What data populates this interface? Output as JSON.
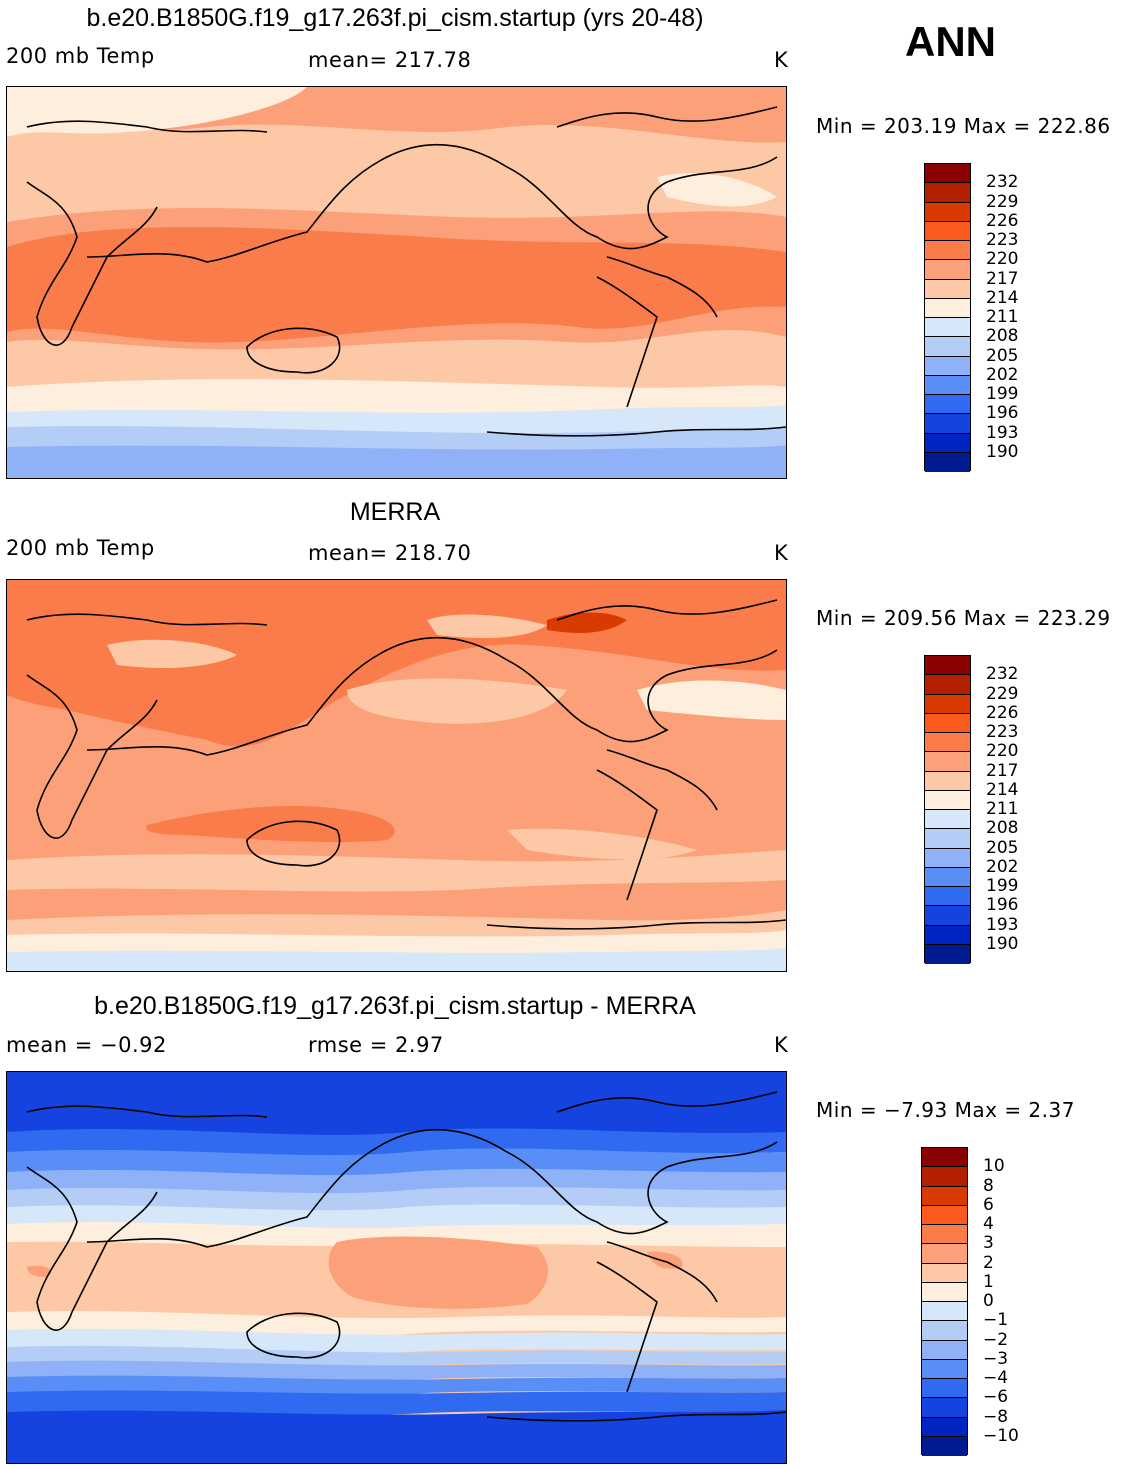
{
  "season": "ANN",
  "panels": [
    {
      "title": "b.e20.B1850G.f19_g17.263f.pi_cism.startup (yrs 20-48)",
      "left_label": "200 mb Temp",
      "center_label": "mean= 217.78",
      "units": "K",
      "minmax": "Min = 203.19 Max = 222.86",
      "colorbar": "abs"
    },
    {
      "title": "MERRA",
      "left_label": "200 mb Temp",
      "center_label": "mean= 218.70",
      "units": "K",
      "minmax": "Min = 209.56 Max = 223.29",
      "colorbar": "abs"
    },
    {
      "title": "b.e20.B1850G.f19_g17.263f.pi_cism.startup - MERRA",
      "left_label": "mean =   −0.92",
      "center_label": "rmse =     2.97",
      "units": "K",
      "minmax": "Min =   −7.93 Max =    2.37",
      "colorbar": "diff"
    }
  ],
  "colorbars": {
    "abs": {
      "labels": [
        "232",
        "229",
        "226",
        "223",
        "220",
        "217",
        "214",
        "211",
        "208",
        "205",
        "202",
        "199",
        "196",
        "193",
        "190"
      ],
      "colors": [
        "#8b0000",
        "#b22000",
        "#d93a00",
        "#fa5a1e",
        "#fa7c4a",
        "#fca07a",
        "#fdc8a6",
        "#fdeedd",
        "#d7e7fa",
        "#b3cdf7",
        "#8fb1f7",
        "#5a8ef7",
        "#2f6af0",
        "#1443e0",
        "#0024c0",
        "#001a90"
      ]
    },
    "diff": {
      "labels": [
        "10",
        "8",
        "6",
        "4",
        "3",
        "2",
        "1",
        "0",
        "−1",
        "−2",
        "−3",
        "−4",
        "−6",
        "−8",
        "−10"
      ],
      "colors": [
        "#8b0000",
        "#b22000",
        "#d93a00",
        "#fa5a1e",
        "#fa7c4a",
        "#fca07a",
        "#fdc8a6",
        "#fdeedd",
        "#d7e7fa",
        "#b3cdf7",
        "#8fb1f7",
        "#5a8ef7",
        "#2f6af0",
        "#1443e0",
        "#0024c0",
        "#001a90"
      ]
    }
  },
  "chart_data": [
    {
      "type": "heatmap",
      "title": "b.e20.B1850G.f19_g17.263f.pi_cism.startup (yrs 20-48)",
      "variable": "200 mb Temp",
      "units": "K",
      "mean": 217.78,
      "min": 203.19,
      "max": 222.86,
      "contour_levels": [
        190,
        193,
        196,
        199,
        202,
        205,
        208,
        211,
        214,
        217,
        220,
        223,
        226,
        229,
        232
      ]
    },
    {
      "type": "heatmap",
      "title": "MERRA",
      "variable": "200 mb Temp",
      "units": "K",
      "mean": 218.7,
      "min": 209.56,
      "max": 223.29,
      "contour_levels": [
        190,
        193,
        196,
        199,
        202,
        205,
        208,
        211,
        214,
        217,
        220,
        223,
        226,
        229,
        232
      ]
    },
    {
      "type": "heatmap",
      "title": "b.e20.B1850G.f19_g17.263f.pi_cism.startup - MERRA",
      "units": "K",
      "mean": -0.92,
      "rmse": 2.97,
      "min": -7.93,
      "max": 2.37,
      "contour_levels": [
        -10,
        -8,
        -6,
        -4,
        -3,
        -2,
        -1,
        0,
        1,
        2,
        3,
        4,
        6,
        8,
        10
      ]
    }
  ]
}
